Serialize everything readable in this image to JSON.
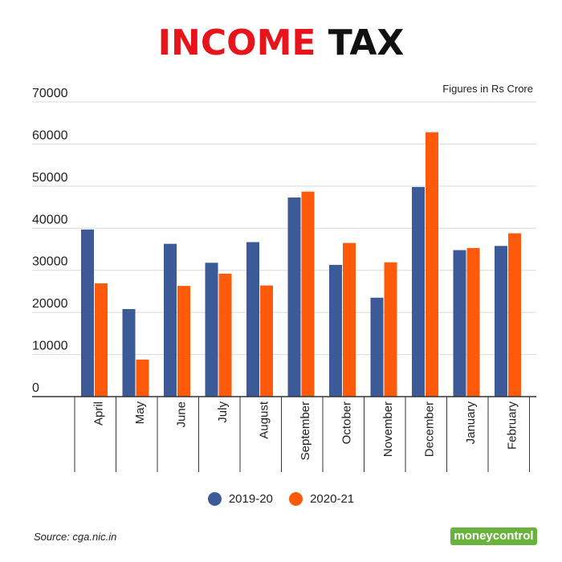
{
  "title": {
    "part1": "INCOME",
    "part2": "TAX"
  },
  "units_note": "Figures in Rs Crore",
  "source": "Source: cga.nic.in",
  "logo": {
    "text": "moneycontrol"
  },
  "colors": {
    "series_2019": "#3d5a98",
    "series_2020": "#ff5a0a"
  },
  "chart_data": {
    "type": "bar",
    "categories": [
      "April",
      "May",
      "June",
      "July",
      "August",
      "September",
      "October",
      "November",
      "December",
      "January",
      "February"
    ],
    "series": [
      {
        "name": "2019-20",
        "values": [
          39700,
          20800,
          36300,
          31800,
          36700,
          47300,
          31300,
          23500,
          49800,
          34800,
          35800
        ]
      },
      {
        "name": "2020-21",
        "values": [
          26900,
          8800,
          26300,
          29200,
          26400,
          48700,
          36500,
          31900,
          62800,
          35300,
          38800
        ]
      }
    ],
    "yticks": [
      0,
      10000,
      20000,
      30000,
      40000,
      50000,
      60000,
      70000
    ],
    "ylim": [
      0,
      70000
    ],
    "grid": true,
    "legend": "bottom-center"
  }
}
